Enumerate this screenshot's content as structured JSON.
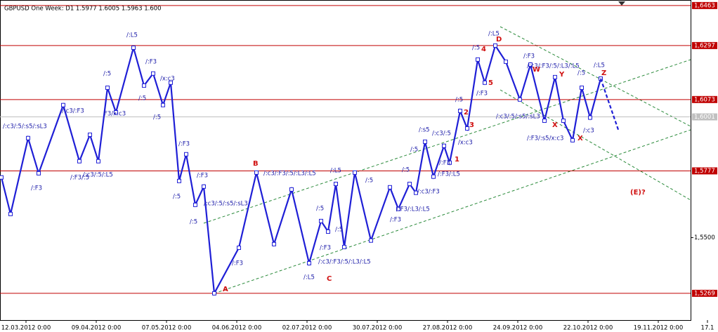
{
  "chart_data": {
    "type": "line",
    "title": "GBPUSD One Week: D1  1.5977 1.6005 1.5963 1.600",
    "xlim": [
      -7.4,
      189.2
    ],
    "xticks": [
      {
        "value": 0,
        "label": "12.03.2012 0:00"
      },
      {
        "value": 20,
        "label": "09.04.2012 0:00"
      },
      {
        "value": 40,
        "label": "07.05.2012 0:00"
      },
      {
        "value": 60,
        "label": "04.06.2012 0:00"
      },
      {
        "value": 80,
        "label": "02.07.2012 0:00"
      },
      {
        "value": 100,
        "label": "30.07.2012 0:00"
      },
      {
        "value": 120,
        "label": "27.08.2012 0:00"
      },
      {
        "value": 140,
        "label": "24.09.2012 0:00"
      },
      {
        "value": 160,
        "label": "22.10.2012 0:00"
      },
      {
        "value": 180,
        "label": "19.11.2012 0:00"
      },
      {
        "value": 194,
        "label": "17.1"
      }
    ],
    "ylim": [
      1.5158,
      1.6486
    ],
    "yticks": [
      {
        "value": 1.55,
        "label": "1,5500"
      }
    ],
    "levels": [
      {
        "value": 1.6463,
        "label": "1,6463"
      },
      {
        "value": 1.6297,
        "label": "1,6297"
      },
      {
        "value": 1.6073,
        "label": "1,6073"
      },
      {
        "value": 1.5777,
        "label": "1,5777"
      },
      {
        "value": 1.5269,
        "label": "1,5269"
      }
    ],
    "level_color": "#c00000",
    "current": {
      "value": 1.6001,
      "label": "1,6001"
    },
    "series": [
      {
        "color": "#1f1fd6",
        "markers": true,
        "x": [
          -7,
          -4.4,
          0.6,
          3.6,
          10.6,
          15.2,
          18.2,
          20.6,
          23.2,
          25.6,
          30.6,
          33.6,
          36.2,
          39,
          41.2,
          43.6,
          45.6,
          48.2,
          50.6,
          53.6,
          60.6,
          65.6,
          70.6,
          75.6,
          80.6,
          84,
          86,
          88.2,
          90.6,
          93.6,
          98.2,
          103.6,
          106,
          109.2,
          111,
          113.6,
          116,
          119,
          120.6,
          123.6,
          125.6,
          128.6,
          130.6,
          133.6,
          136.6,
          140.6,
          143.6,
          147.6,
          150.6,
          153,
          155.6,
          158.2,
          160.6,
          163.6
        ],
        "values": [
          1.575,
          1.5598,
          1.5913,
          1.5767,
          1.605,
          1.5817,
          1.5927,
          1.5817,
          1.6122,
          1.602,
          1.6288,
          1.6131,
          1.6181,
          1.605,
          1.6143,
          1.5735,
          1.5846,
          1.5636,
          1.5712,
          1.5269,
          1.5458,
          1.577,
          1.5473,
          1.57,
          1.5394,
          1.5569,
          1.5525,
          1.5723,
          1.5461,
          1.577,
          1.5488,
          1.5709,
          1.5619,
          1.5723,
          1.5686,
          1.5898,
          1.5753,
          1.5881,
          1.5811,
          1.6026,
          1.5953,
          1.6239,
          1.6143,
          1.6297,
          1.623,
          1.6073,
          1.6218,
          1.5985,
          1.6166,
          1.5985,
          1.5904,
          1.6122,
          1.5998,
          1.616
        ]
      },
      {
        "color": "#1f1fd6",
        "dashed": true,
        "x": [
          163.6,
          168.6
        ],
        "values": [
          1.616,
          1.5948
        ]
      }
    ],
    "annotations": [
      "/:L5",
      "/:F3",
      "/:5",
      "/x:c3",
      "/:5",
      "/:c3/:F3",
      "F3/x:c3",
      "/:c3/:5/:s5/:sL3",
      "/:F3",
      "/:F3/:5",
      "/:c3/:5/:L5",
      "/:5",
      "/:F3",
      "/:F3",
      "/:5",
      "/:5",
      "/:c3/:5/:s5/:sL3",
      "/:F3",
      "B",
      "/:c3/:F3/:5/:L3/:L5",
      "A",
      "/:L5",
      "/:F3",
      "/:5",
      "/:L5",
      "/:c3/:F3/:5/:L3/:L5",
      "C",
      "/:5",
      "/:5",
      "/:F3/:L3/:L5",
      "/:F3",
      "/:c3/:F3",
      "/:5",
      "/:F3/:L5",
      "/:5",
      "/:s5",
      "/:c3/:5",
      "/x:c3",
      "1",
      "2",
      "3",
      "/:F3",
      "/:5",
      "/:5",
      "4",
      "/:L5",
      "D",
      "5",
      "/:F3",
      "/:F3",
      "/:c3/:F3/:5/:L3/:L5",
      "W",
      "Y",
      "/:5",
      "/:L5",
      "Z",
      "/:c3/:5/:s5/:sL3",
      "X",
      "/:F3/:s5/x:c3",
      "X",
      "/:c3",
      "(E)?"
    ]
  }
}
